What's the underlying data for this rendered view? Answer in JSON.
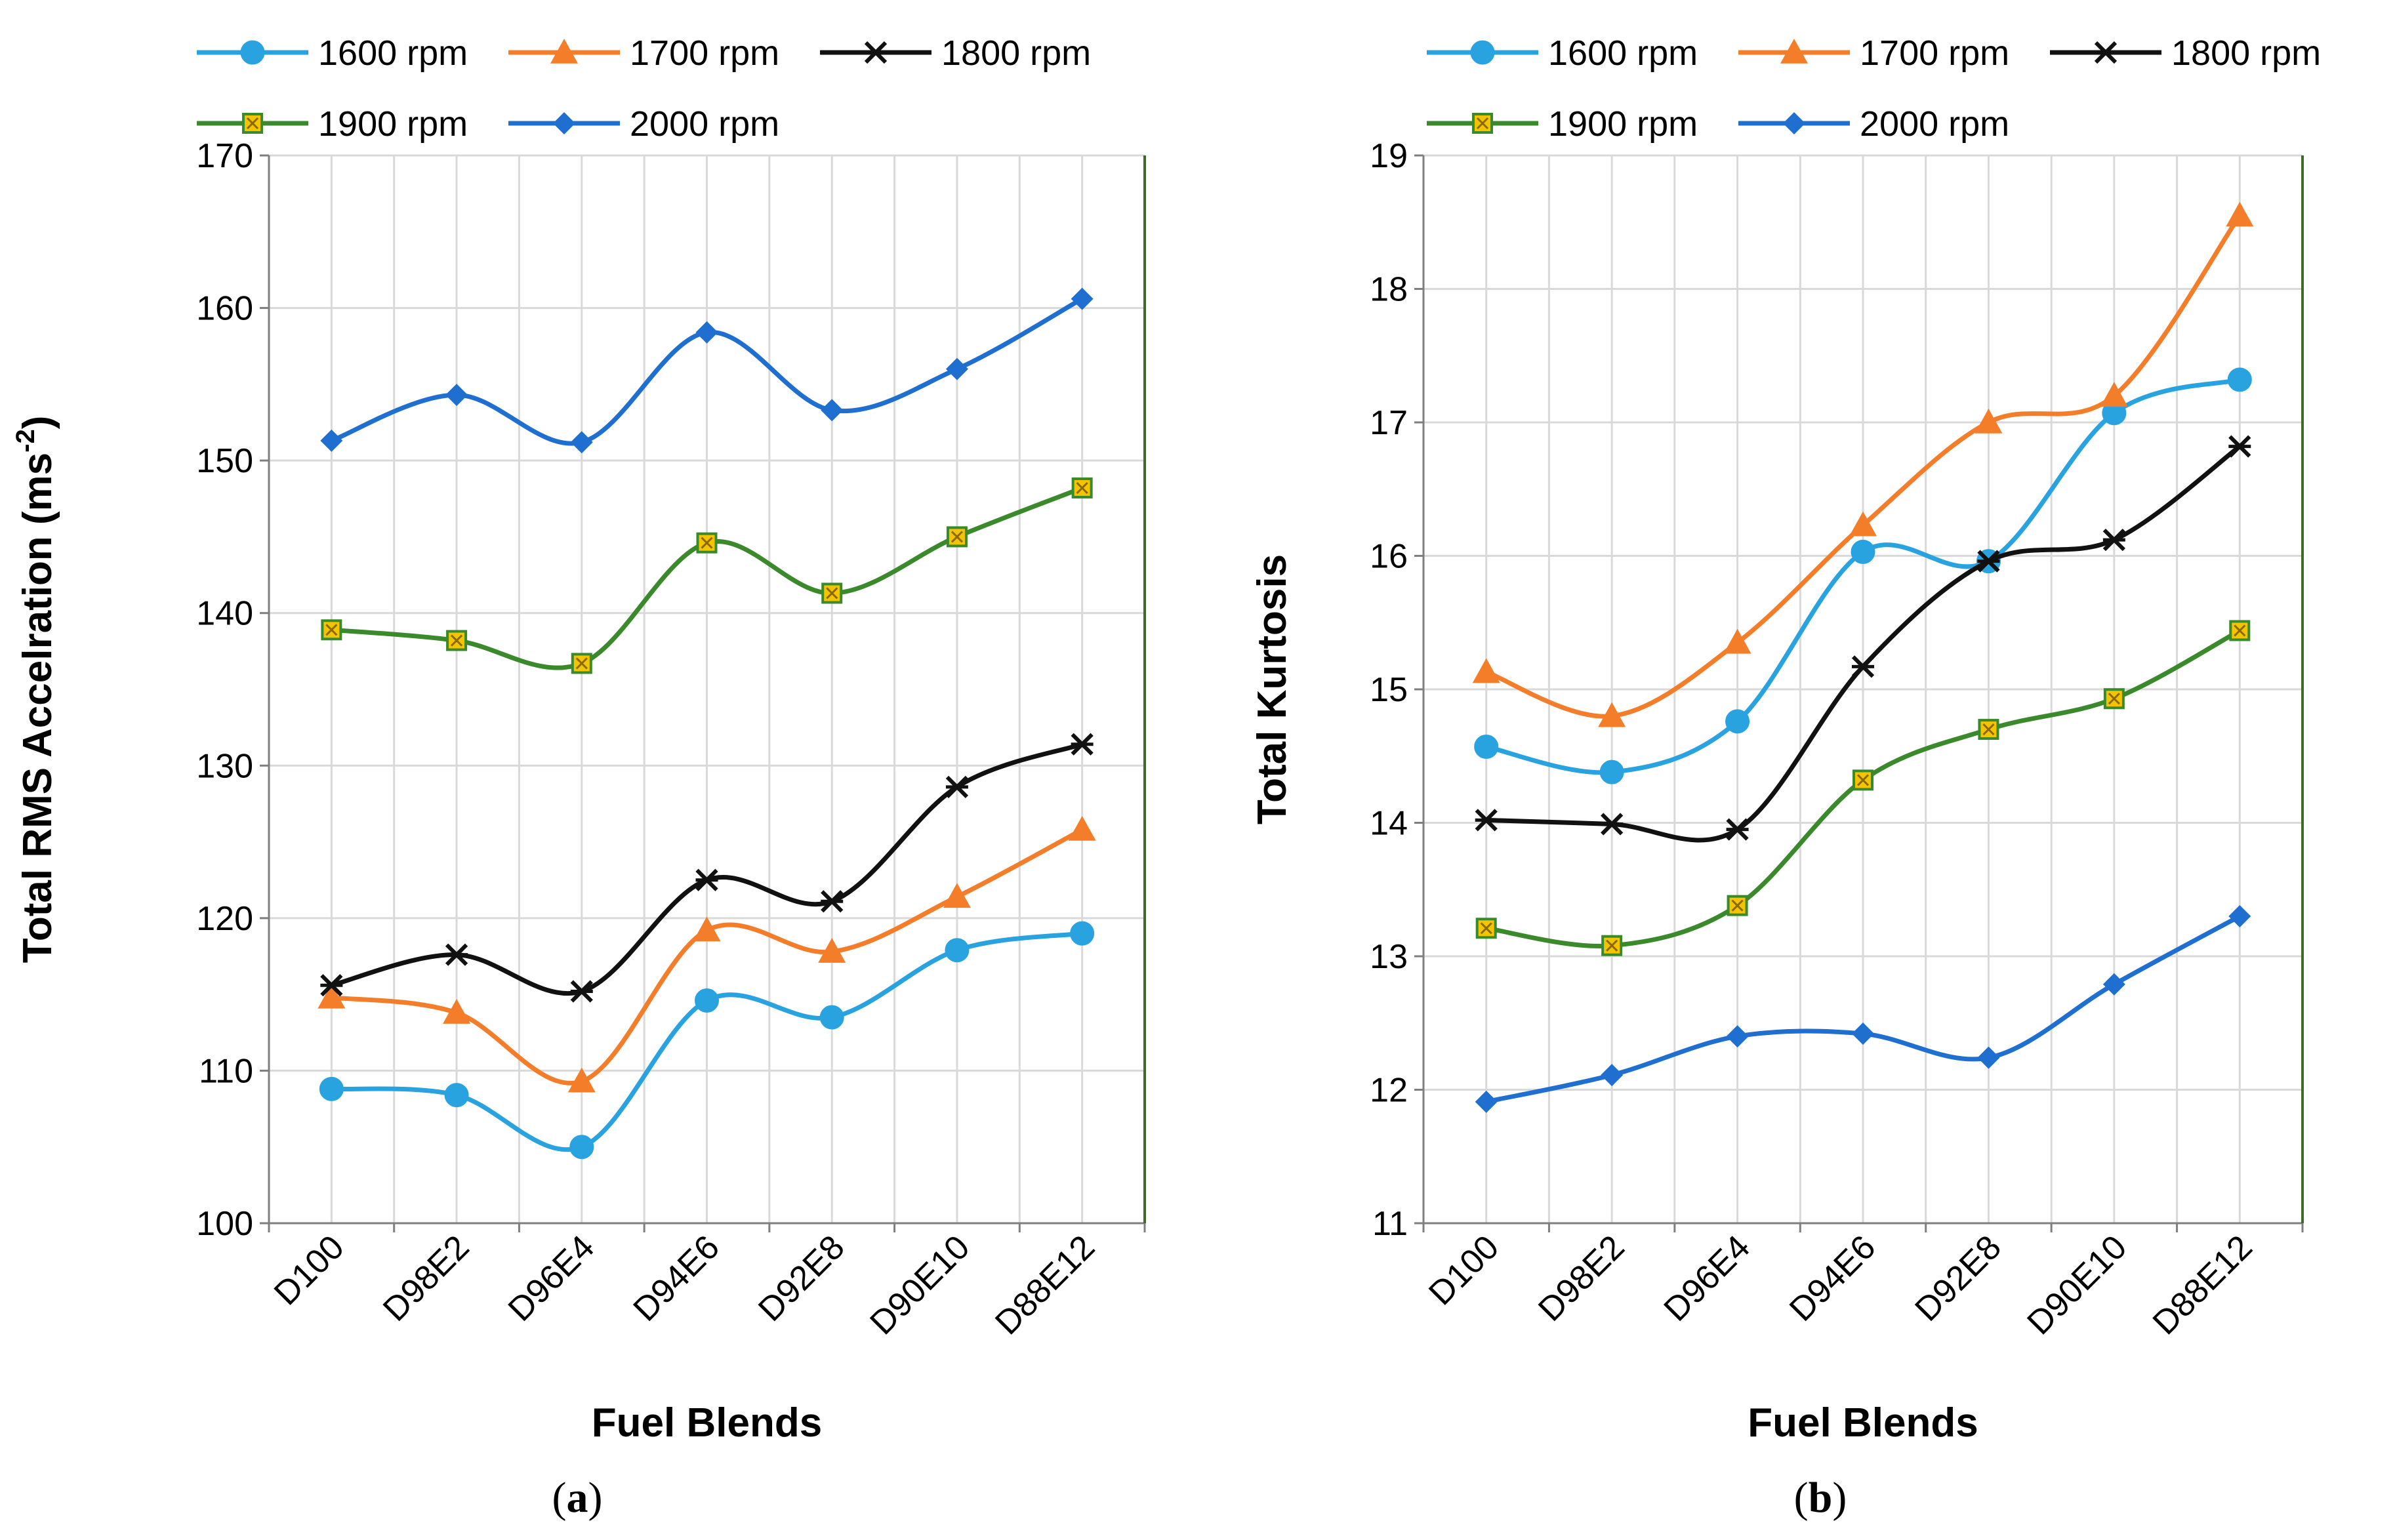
{
  "charts": [
    {
      "panel_label": "a",
      "ylabel_main": "Total RMS Accelration (ms",
      "ylabel_sup": "-2",
      "ylabel_close": ")"
    },
    {
      "panel_label": "b",
      "ylabel_main": "Total Kurtosis",
      "ylabel_sup": "",
      "ylabel_close": ""
    }
  ],
  "chart_data": [
    {
      "type": "line",
      "title": "(a)",
      "xlabel": "Fuel Blends",
      "ylabel": "Total RMS Accelration (ms-2)",
      "categories": [
        "D100",
        "D98E2",
        "D96E4",
        "D94E6",
        "D92E8",
        "D90E10",
        "D88E12"
      ],
      "ylim": [
        100,
        170
      ],
      "yticks": [
        100,
        110,
        120,
        130,
        140,
        150,
        160,
        170
      ],
      "grid": true,
      "legend_position": "top",
      "series": [
        {
          "name": "1600 rpm",
          "color": "#29a3e0",
          "marker": "circle",
          "values": [
            108.8,
            108.4,
            105.0,
            114.6,
            113.5,
            117.9,
            119.0
          ]
        },
        {
          "name": "1700 rpm",
          "color": "#f47d2a",
          "marker": "triangle",
          "values": [
            114.8,
            113.8,
            109.3,
            119.2,
            117.8,
            121.4,
            125.8
          ]
        },
        {
          "name": "1800 rpm",
          "color": "#111111",
          "marker": "star",
          "values": [
            115.6,
            117.6,
            115.2,
            122.5,
            121.1,
            128.6,
            131.4
          ]
        },
        {
          "name": "1900 rpm",
          "color": "#3a8a2c",
          "marker": "square",
          "values": [
            138.9,
            138.2,
            136.7,
            144.6,
            141.3,
            145.0,
            148.2
          ]
        },
        {
          "name": "2000 rpm",
          "color": "#1e6fd0",
          "marker": "diamond",
          "values": [
            151.3,
            154.3,
            151.2,
            158.4,
            153.3,
            156.0,
            160.6
          ]
        }
      ]
    },
    {
      "type": "line",
      "title": "(b)",
      "xlabel": "Fuel Blends",
      "ylabel": "Total Kurtosis",
      "categories": [
        "D100",
        "D98E2",
        "D96E4",
        "D94E6",
        "D92E8",
        "D90E10",
        "D88E12"
      ],
      "ylim": [
        11,
        19
      ],
      "yticks": [
        11,
        12,
        13,
        14,
        15,
        16,
        17,
        18,
        19
      ],
      "grid": true,
      "legend_position": "top",
      "series": [
        {
          "name": "1600 rpm",
          "color": "#29a3e0",
          "marker": "circle",
          "values": [
            14.57,
            14.38,
            14.76,
            16.03,
            15.96,
            17.07,
            17.32
          ]
        },
        {
          "name": "1700 rpm",
          "color": "#f47d2a",
          "marker": "triangle",
          "values": [
            15.13,
            14.8,
            15.35,
            16.23,
            17.0,
            17.2,
            18.55
          ]
        },
        {
          "name": "1800 rpm",
          "color": "#111111",
          "marker": "star",
          "values": [
            14.02,
            13.99,
            13.95,
            15.17,
            15.96,
            16.12,
            16.82
          ]
        },
        {
          "name": "1900 rpm",
          "color": "#3a8a2c",
          "marker": "square",
          "values": [
            13.21,
            13.08,
            13.38,
            14.32,
            14.7,
            14.93,
            15.44
          ]
        },
        {
          "name": "2000 rpm",
          "color": "#1e6fd0",
          "marker": "diamond",
          "values": [
            11.91,
            12.11,
            12.4,
            12.42,
            12.24,
            12.79,
            13.3
          ]
        }
      ]
    }
  ]
}
